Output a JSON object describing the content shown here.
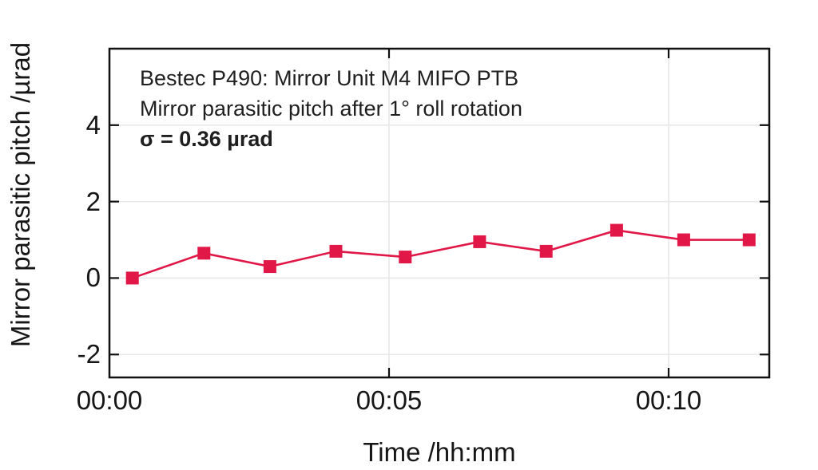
{
  "figure": {
    "colors": {
      "series": "#e01747",
      "grid": "#e8e8e8",
      "frame": "#111111",
      "text": "#1a1a1a",
      "background": "#ffffff"
    }
  },
  "chart_data": {
    "type": "line",
    "title": "Bestec P490: Mirror Unit M4 MIFO PTB",
    "annotations": [
      "Bestec P490: Mirror Unit M4 MIFO PTB",
      "Mirror parasitic pitch after 1° roll rotation",
      "σ = 0.36 µrad"
    ],
    "sigma_urad": 0.36,
    "xlabel": "Time /hh:mm",
    "ylabel": "Mirror parasitic pitch /µrad",
    "xlim": [
      0,
      11.8
    ],
    "ylim": [
      -2.6,
      6.0
    ],
    "x_minutes": [
      0.41,
      1.69,
      2.87,
      4.05,
      5.29,
      6.62,
      7.81,
      9.07,
      10.27,
      11.44
    ],
    "series": [
      {
        "color": "#e01747",
        "marker": "square",
        "marker_size_px": 16,
        "values": [
          0.0,
          0.65,
          0.3,
          0.7,
          0.55,
          0.95,
          0.7,
          1.25,
          1.0,
          1.0
        ]
      }
    ],
    "xticks": {
      "values": [
        0,
        5,
        10
      ],
      "labels": [
        "00:00",
        "00:05",
        "00:10"
      ]
    },
    "yticks": {
      "values": [
        -2,
        0,
        2,
        4
      ],
      "labels": [
        "-2",
        "0",
        "2",
        "4"
      ]
    },
    "grid": true,
    "legend": "none"
  }
}
